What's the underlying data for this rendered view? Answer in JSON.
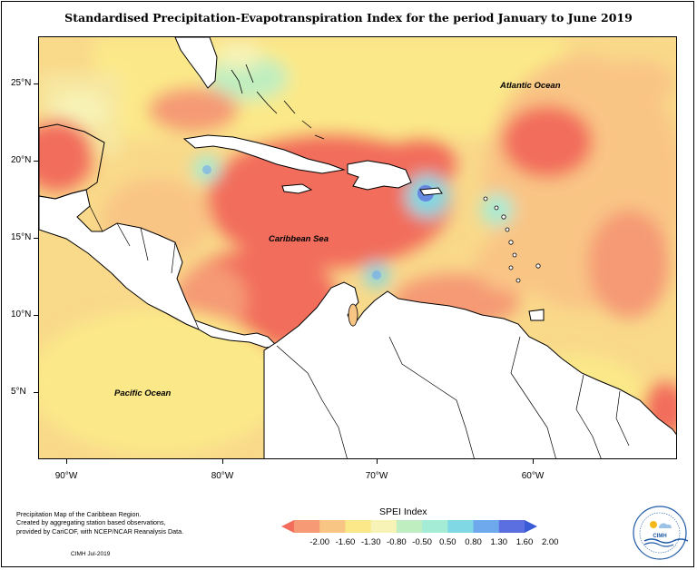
{
  "title": "Standardised Precipitation-Evapotranspiration Index for the period January to June 2019",
  "latitude_labels": [
    "25°N",
    "20°N",
    "15°N",
    "10°N",
    "5°N"
  ],
  "longitude_labels": [
    "90°W",
    "80°W",
    "70°W",
    "60°W"
  ],
  "ocean_labels": {
    "atlantic": "Atlantic Ocean",
    "caribbean": "Caribbean Sea",
    "pacific": "Pacific Ocean"
  },
  "notes": {
    "line1": "Precipitation Map of the Caribbean Region.",
    "line2": "Created by aggregating station based observations,",
    "line3": "provided by CariCOF, with NCEP/NCAR Reanalysis Data.",
    "credit": "CIMH Jul-2019"
  },
  "legend": {
    "title": "SPEI Index",
    "ticks": [
      "-2.00",
      "-1.60",
      "-1.30",
      "-0.80",
      "-0.50",
      "0.50",
      "0.80",
      "1.30",
      "1.60",
      "2.00"
    ],
    "colors": [
      "#f26d5b",
      "#f59a74",
      "#f9c585",
      "#fbe989",
      "#f7f3b6",
      "#bfeec0",
      "#a4ecd6",
      "#7fd8e3",
      "#6ea9ee",
      "#5b6fe0",
      "#3a5bd6"
    ]
  },
  "logo": {
    "text": "CIMH"
  }
}
